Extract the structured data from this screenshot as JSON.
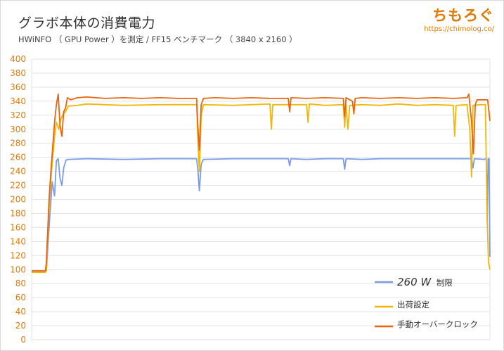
{
  "header": {
    "title": "グラボ本体の消費電力",
    "subtitle": "HWiNFO （ GPU Power ）を測定 / FF15 ベンチマーク （ 3840 x 2160 ）"
  },
  "logo": {
    "name": "ちもろぐ",
    "url": "https://chimolog.co/"
  },
  "colors": {
    "limit260": "#7b9be6",
    "stock": "#f2b705",
    "oc": "#e8650f",
    "tick": "#e07a00",
    "grid": "#e3e3e3"
  },
  "chart_data": {
    "type": "line",
    "title": "グラボ本体の消費電力",
    "ylim": [
      0,
      400
    ],
    "ytick_step": 20,
    "yticks": [
      "0",
      "20",
      "40",
      "60",
      "80",
      "100",
      "120",
      "140",
      "160",
      "180",
      "200",
      "220",
      "240",
      "260",
      "280",
      "300",
      "320",
      "340",
      "360",
      "380",
      "400"
    ],
    "xlim": [
      0,
      100
    ],
    "grid": "horizontal",
    "legend_position": "bottom-right",
    "series": [
      {
        "name": "260 W",
        "name_suffix": "制限",
        "color_key": "limit260",
        "points": [
          [
            0,
            98
          ],
          [
            3,
            98
          ],
          [
            3.2,
            98
          ],
          [
            4,
            180
          ],
          [
            4.5,
            225
          ],
          [
            5,
            205
          ],
          [
            5.4,
            255
          ],
          [
            5.8,
            258
          ],
          [
            6.2,
            230
          ],
          [
            6.6,
            220
          ],
          [
            7,
            245
          ],
          [
            7.5,
            256
          ],
          [
            8,
            257
          ],
          [
            12,
            258
          ],
          [
            20,
            257
          ],
          [
            28,
            258
          ],
          [
            36,
            258
          ],
          [
            36.3,
            240
          ],
          [
            36.6,
            212
          ],
          [
            37,
            250
          ],
          [
            37.5,
            257
          ],
          [
            44,
            258
          ],
          [
            52,
            258
          ],
          [
            56,
            258
          ],
          [
            56.3,
            248
          ],
          [
            56.6,
            258
          ],
          [
            60,
            257
          ],
          [
            64,
            258
          ],
          [
            68,
            258
          ],
          [
            68.3,
            243
          ],
          [
            68.6,
            258
          ],
          [
            72,
            257
          ],
          [
            76,
            258
          ],
          [
            80,
            258
          ],
          [
            84,
            258
          ],
          [
            90,
            258
          ],
          [
            96,
            258
          ],
          [
            96.3,
            245
          ],
          [
            96.6,
            258
          ],
          [
            98.8,
            257
          ],
          [
            99.2,
            258
          ],
          [
            99.4,
            170
          ],
          [
            99.6,
            258
          ],
          [
            99.8,
            258
          ],
          [
            100,
            118
          ]
        ]
      },
      {
        "name": "出荷設定",
        "color_key": "stock",
        "points": [
          [
            0,
            96
          ],
          [
            3,
            96
          ],
          [
            3.2,
            100
          ],
          [
            3.7,
            175
          ],
          [
            4.2,
            230
          ],
          [
            4.6,
            260
          ],
          [
            5,
            290
          ],
          [
            5.4,
            310
          ],
          [
            5.9,
            300
          ],
          [
            6.4,
            315
          ],
          [
            6.9,
            322
          ],
          [
            7.4,
            325
          ],
          [
            8,
            333
          ],
          [
            10,
            334
          ],
          [
            12,
            336
          ],
          [
            20,
            334
          ],
          [
            28,
            335
          ],
          [
            36,
            335
          ],
          [
            36.3,
            280
          ],
          [
            36.6,
            240
          ],
          [
            37,
            320
          ],
          [
            37.5,
            335
          ],
          [
            44,
            334
          ],
          [
            52,
            336
          ],
          [
            52.3,
            300
          ],
          [
            52.6,
            335
          ],
          [
            56,
            335
          ],
          [
            60,
            335
          ],
          [
            60.3,
            310
          ],
          [
            60.6,
            336
          ],
          [
            64,
            334
          ],
          [
            68,
            335
          ],
          [
            68.3,
            303
          ],
          [
            68.6,
            335
          ],
          [
            69,
            300
          ],
          [
            69.4,
            334
          ],
          [
            72,
            335
          ],
          [
            76,
            334
          ],
          [
            80,
            336
          ],
          [
            84,
            334
          ],
          [
            88,
            335
          ],
          [
            92,
            334
          ],
          [
            92.3,
            290
          ],
          [
            92.6,
            334
          ],
          [
            95,
            335
          ],
          [
            95.6,
            300
          ],
          [
            96,
            232
          ],
          [
            96.3,
            334
          ],
          [
            98,
            335
          ],
          [
            99,
            335
          ],
          [
            99.4,
            170
          ],
          [
            99.7,
            110
          ],
          [
            100,
            100
          ]
        ]
      },
      {
        "name": "手動オーバークロック",
        "color_key": "oc",
        "points": [
          [
            0,
            98
          ],
          [
            3,
            98
          ],
          [
            3.2,
            110
          ],
          [
            3.8,
            200
          ],
          [
            4.2,
            240
          ],
          [
            4.6,
            275
          ],
          [
            5,
            310
          ],
          [
            5.4,
            335
          ],
          [
            5.8,
            350
          ],
          [
            6.2,
            305
          ],
          [
            6.6,
            290
          ],
          [
            7,
            325
          ],
          [
            7.4,
            330
          ],
          [
            7.8,
            345
          ],
          [
            8.5,
            342
          ],
          [
            10,
            345
          ],
          [
            12,
            346
          ],
          [
            16,
            344
          ],
          [
            20,
            345
          ],
          [
            24,
            344
          ],
          [
            28,
            345
          ],
          [
            32,
            344
          ],
          [
            36,
            344
          ],
          [
            36.3,
            300
          ],
          [
            36.6,
            270
          ],
          [
            37,
            335
          ],
          [
            37.5,
            344
          ],
          [
            40,
            345
          ],
          [
            44,
            344
          ],
          [
            48,
            345
          ],
          [
            52,
            344
          ],
          [
            56,
            344
          ],
          [
            56.3,
            325
          ],
          [
            56.6,
            345
          ],
          [
            60,
            344
          ],
          [
            64,
            345
          ],
          [
            68,
            344
          ],
          [
            68.3,
            318
          ],
          [
            68.6,
            345
          ],
          [
            70,
            340
          ],
          [
            70.3,
            322
          ],
          [
            70.6,
            344
          ],
          [
            72,
            345
          ],
          [
            76,
            344
          ],
          [
            80,
            345
          ],
          [
            84,
            344
          ],
          [
            88,
            345
          ],
          [
            92,
            344
          ],
          [
            95,
            345
          ],
          [
            95.4,
            350
          ],
          [
            96,
            310
          ],
          [
            96.4,
            265
          ],
          [
            96.8,
            335
          ],
          [
            97.2,
            342
          ],
          [
            99,
            342
          ],
          [
            99.5,
            342
          ],
          [
            100,
            312
          ]
        ]
      }
    ]
  }
}
